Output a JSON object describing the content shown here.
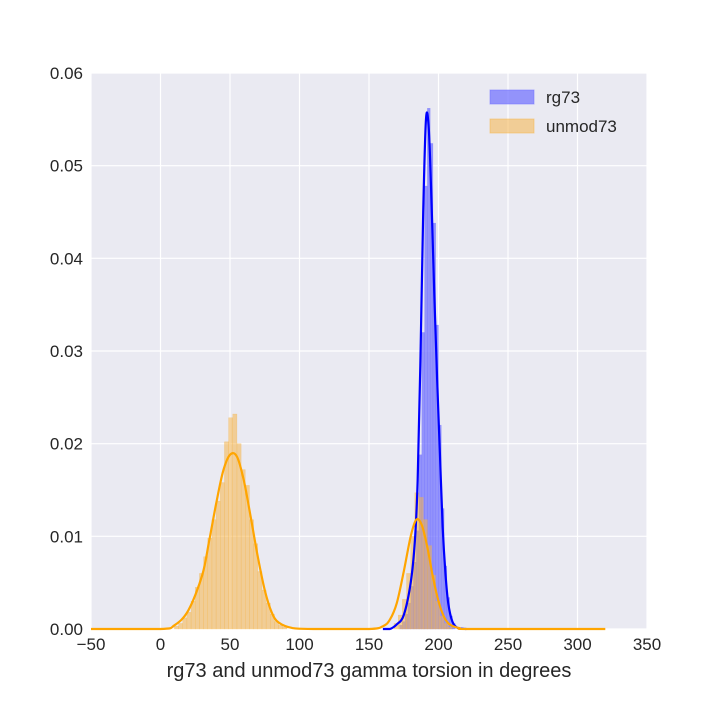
{
  "chart_data": {
    "type": "histogram",
    "title": "",
    "xlabel": "rg73 and unmod73 gamma torsion in degrees",
    "ylabel": "",
    "xlim": [
      -50,
      350
    ],
    "ylim": [
      0,
      0.06
    ],
    "x_ticks": [
      -50,
      0,
      50,
      100,
      150,
      200,
      250,
      300,
      350
    ],
    "y_ticks": [
      0.0,
      0.01,
      0.02,
      0.03,
      0.04,
      0.05,
      0.06
    ],
    "x_tick_labels": [
      "−50",
      "0",
      "50",
      "100",
      "150",
      "200",
      "250",
      "300",
      "350"
    ],
    "y_tick_labels": [
      "0.00",
      "0.01",
      "0.02",
      "0.03",
      "0.04",
      "0.05",
      "0.06"
    ],
    "grid": true,
    "legend_position": "top-right",
    "series": [
      {
        "name": "rg73",
        "hist_color": "#6d6dff",
        "hist_opacity": 0.7,
        "kde_color": "#0000ff",
        "bin_width": 2,
        "bins": [
          [
            172,
            0.0004
          ],
          [
            174,
            0.0008
          ],
          [
            176,
            0.0016
          ],
          [
            178,
            0.0028
          ],
          [
            180,
            0.0046
          ],
          [
            182,
            0.0072
          ],
          [
            184,
            0.0106
          ],
          [
            186,
            0.0188
          ],
          [
            188,
            0.032
          ],
          [
            190,
            0.0478
          ],
          [
            192,
            0.0562
          ],
          [
            194,
            0.0524
          ],
          [
            196,
            0.0438
          ],
          [
            198,
            0.0328
          ],
          [
            200,
            0.022
          ],
          [
            202,
            0.013
          ],
          [
            204,
            0.0068
          ],
          [
            206,
            0.0034
          ],
          [
            208,
            0.0014
          ],
          [
            210,
            0.0006
          ]
        ],
        "kde": [
          [
            160,
            0.0
          ],
          [
            165,
            0.0
          ],
          [
            170,
            0.0005
          ],
          [
            175,
            0.0015
          ],
          [
            180,
            0.005
          ],
          [
            183,
            0.0095
          ],
          [
            185,
            0.016
          ],
          [
            187,
            0.029
          ],
          [
            189,
            0.045
          ],
          [
            191,
            0.055
          ],
          [
            193,
            0.054
          ],
          [
            195,
            0.046
          ],
          [
            197,
            0.036
          ],
          [
            199,
            0.027
          ],
          [
            201,
            0.019
          ],
          [
            203,
            0.011
          ],
          [
            205,
            0.006
          ],
          [
            207,
            0.0028
          ],
          [
            210,
            0.0008
          ],
          [
            214,
            0.0001
          ],
          [
            220,
            0.0
          ]
        ]
      },
      {
        "name": "unmod73",
        "hist_color": "#f5b54a",
        "hist_opacity": 0.55,
        "kde_color": "#ffa500",
        "bin_width": 3,
        "bins": [
          [
            10,
            0.0003
          ],
          [
            13,
            0.0006
          ],
          [
            16,
            0.0012
          ],
          [
            19,
            0.0018
          ],
          [
            22,
            0.003
          ],
          [
            25,
            0.0045
          ],
          [
            28,
            0.006
          ],
          [
            31,
            0.0078
          ],
          [
            34,
            0.0098
          ],
          [
            37,
            0.0118
          ],
          [
            40,
            0.0138
          ],
          [
            43,
            0.0158
          ],
          [
            46,
            0.0202
          ],
          [
            49,
            0.0228
          ],
          [
            52,
            0.0232
          ],
          [
            55,
            0.02
          ],
          [
            58,
            0.0172
          ],
          [
            61,
            0.0155
          ],
          [
            64,
            0.0118
          ],
          [
            67,
            0.0092
          ],
          [
            70,
            0.0062
          ],
          [
            73,
            0.0042
          ],
          [
            76,
            0.0028
          ],
          [
            79,
            0.0016
          ],
          [
            82,
            0.0008
          ],
          [
            85,
            0.0004
          ],
          [
            88,
            0.0002
          ],
          [
            168,
            0.0006
          ],
          [
            171,
            0.0015
          ],
          [
            174,
            0.0032
          ],
          [
            177,
            0.006
          ],
          [
            180,
            0.01
          ],
          [
            183,
            0.0147
          ],
          [
            186,
            0.0142
          ],
          [
            189,
            0.0118
          ],
          [
            192,
            0.009
          ],
          [
            195,
            0.0058
          ],
          [
            198,
            0.003
          ],
          [
            201,
            0.0014
          ],
          [
            204,
            0.0006
          ],
          [
            207,
            0.0002
          ]
        ],
        "kde": [
          [
            -50,
            0.0
          ],
          [
            0,
            0.0
          ],
          [
            10,
            0.0004
          ],
          [
            20,
            0.002
          ],
          [
            30,
            0.0058
          ],
          [
            35,
            0.0095
          ],
          [
            40,
            0.0135
          ],
          [
            45,
            0.017
          ],
          [
            50,
            0.0188
          ],
          [
            55,
            0.0186
          ],
          [
            60,
            0.016
          ],
          [
            65,
            0.012
          ],
          [
            70,
            0.0078
          ],
          [
            75,
            0.0042
          ],
          [
            80,
            0.0018
          ],
          [
            85,
            0.0007
          ],
          [
            95,
            0.0001
          ],
          [
            110,
            0.0
          ],
          [
            150,
            0.0
          ],
          [
            160,
            0.0003
          ],
          [
            165,
            0.001
          ],
          [
            170,
            0.0028
          ],
          [
            175,
            0.0062
          ],
          [
            180,
            0.01
          ],
          [
            184,
            0.0118
          ],
          [
            188,
            0.0112
          ],
          [
            192,
            0.0088
          ],
          [
            196,
            0.0056
          ],
          [
            200,
            0.003
          ],
          [
            204,
            0.0013
          ],
          [
            208,
            0.0005
          ],
          [
            215,
            0.0001
          ],
          [
            225,
            0.0
          ],
          [
            320,
            0.0
          ]
        ]
      }
    ]
  }
}
